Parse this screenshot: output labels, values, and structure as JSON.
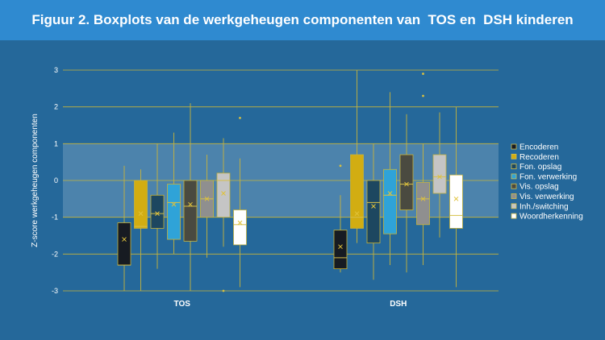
{
  "title": "Figuur 2. Boxplots van de werkgeheugen componenten van  TOS en  DSH kinderen",
  "chart_data": {
    "type": "boxplot",
    "ylabel": "Z-score werkgeheugen componenten",
    "ylim": [
      -3,
      3
    ],
    "yticks": [
      -3,
      -2,
      -1,
      0,
      1,
      2,
      3
    ],
    "grid": true,
    "shaded_band": [
      -1,
      1
    ],
    "legend_position": "right",
    "categories": [
      "TOS",
      "DSH"
    ],
    "series": [
      {
        "name": "Encoderen",
        "color": "#171b22",
        "groups": [
          {
            "min": -3.0,
            "q1": -2.3,
            "median": -2.3,
            "q3": -1.15,
            "max": 0.4,
            "mean": -1.6,
            "outliers": []
          },
          {
            "min": -2.5,
            "q1": -2.4,
            "median": -2.1,
            "q3": -1.35,
            "max": -0.4,
            "mean": -1.8,
            "outliers": [
              0.4
            ]
          }
        ]
      },
      {
        "name": "Recoderen",
        "color": "#d2ad12",
        "groups": [
          {
            "min": -3.0,
            "q1": -1.3,
            "median": -1.25,
            "q3": 0.0,
            "max": 0.3,
            "mean": -0.9,
            "outliers": []
          },
          {
            "min": -1.7,
            "q1": -1.3,
            "median": -1.0,
            "q3": 0.7,
            "max": 3.0,
            "mean": -0.9,
            "outliers": []
          }
        ]
      },
      {
        "name": "Fon. opslag",
        "color": "#1d4760",
        "groups": [
          {
            "min": -2.4,
            "q1": -1.3,
            "median": -0.9,
            "q3": -0.4,
            "max": 1.0,
            "mean": -0.9,
            "outliers": []
          },
          {
            "min": -2.7,
            "q1": -1.7,
            "median": -0.6,
            "q3": 0.0,
            "max": 1.0,
            "mean": -0.7,
            "outliers": []
          }
        ]
      },
      {
        "name": "Fon. verwerking",
        "color": "#2fa3d8",
        "groups": [
          {
            "min": -2.0,
            "q1": -1.6,
            "median": -0.6,
            "q3": -0.1,
            "max": 1.3,
            "mean": -0.65,
            "outliers": []
          },
          {
            "min": -2.3,
            "q1": -1.45,
            "median": -0.4,
            "q3": 0.3,
            "max": 2.4,
            "mean": -0.35,
            "outliers": []
          }
        ]
      },
      {
        "name": "Vis. opslag",
        "color": "#4a4a40",
        "groups": [
          {
            "min": -3.0,
            "q1": -1.65,
            "median": -0.7,
            "q3": 0.0,
            "max": 2.1,
            "mean": -0.65,
            "outliers": []
          },
          {
            "min": -2.5,
            "q1": -0.8,
            "median": -0.1,
            "q3": 0.7,
            "max": 1.8,
            "mean": -0.1,
            "outliers": []
          }
        ]
      },
      {
        "name": "Vis. verwerking",
        "color": "#8f8f8f",
        "groups": [
          {
            "min": -2.1,
            "q1": -1.0,
            "median": -0.5,
            "q3": 0.0,
            "max": 0.7,
            "mean": -0.5,
            "outliers": []
          },
          {
            "min": -2.3,
            "q1": -1.2,
            "median": -0.5,
            "q3": -0.05,
            "max": 1.0,
            "mean": -0.5,
            "outliers": [
              2.3,
              2.9
            ]
          }
        ]
      },
      {
        "name": "Inh./switching",
        "color": "#c5c5c5",
        "groups": [
          {
            "min": -1.8,
            "q1": -1.0,
            "median": 0.0,
            "q3": 0.2,
            "max": 1.15,
            "mean": -0.35,
            "outliers": [
              -3.0
            ]
          },
          {
            "min": -1.55,
            "q1": -0.35,
            "median": 0.1,
            "q3": 0.7,
            "max": 1.85,
            "mean": 0.1,
            "outliers": []
          }
        ]
      },
      {
        "name": "Woordherkenning",
        "color": "#ffffff",
        "groups": [
          {
            "min": -2.9,
            "q1": -1.75,
            "median": -1.2,
            "q3": -0.8,
            "max": 0.6,
            "mean": -1.15,
            "outliers": [
              1.7
            ]
          },
          {
            "min": -2.9,
            "q1": -1.3,
            "median": -0.95,
            "q3": 0.15,
            "max": 2.0,
            "mean": -0.5,
            "outliers": []
          }
        ]
      }
    ]
  }
}
